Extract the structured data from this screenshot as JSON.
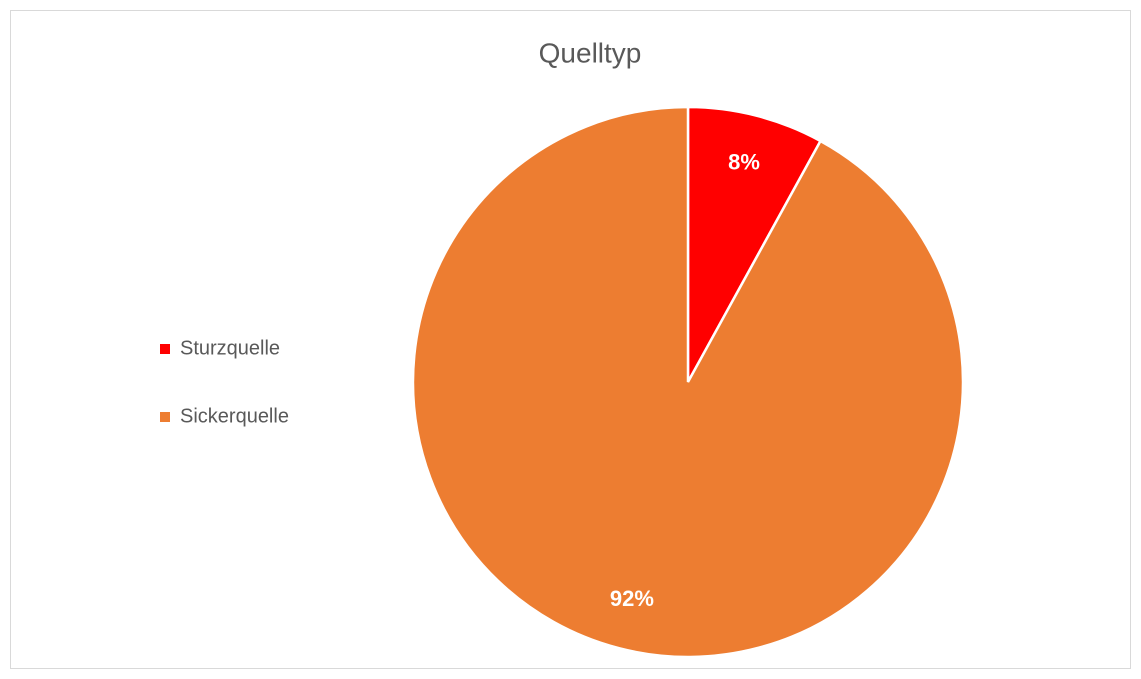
{
  "chart_data": {
    "type": "pie",
    "title": "Quelltyp",
    "categories": [
      "Sturzquelle",
      "Sickerquelle"
    ],
    "values": [
      8,
      92
    ],
    "value_labels": [
      "8%",
      "92%"
    ],
    "colors": [
      "#ff0000",
      "#ed7d31"
    ],
    "legend": "left"
  }
}
